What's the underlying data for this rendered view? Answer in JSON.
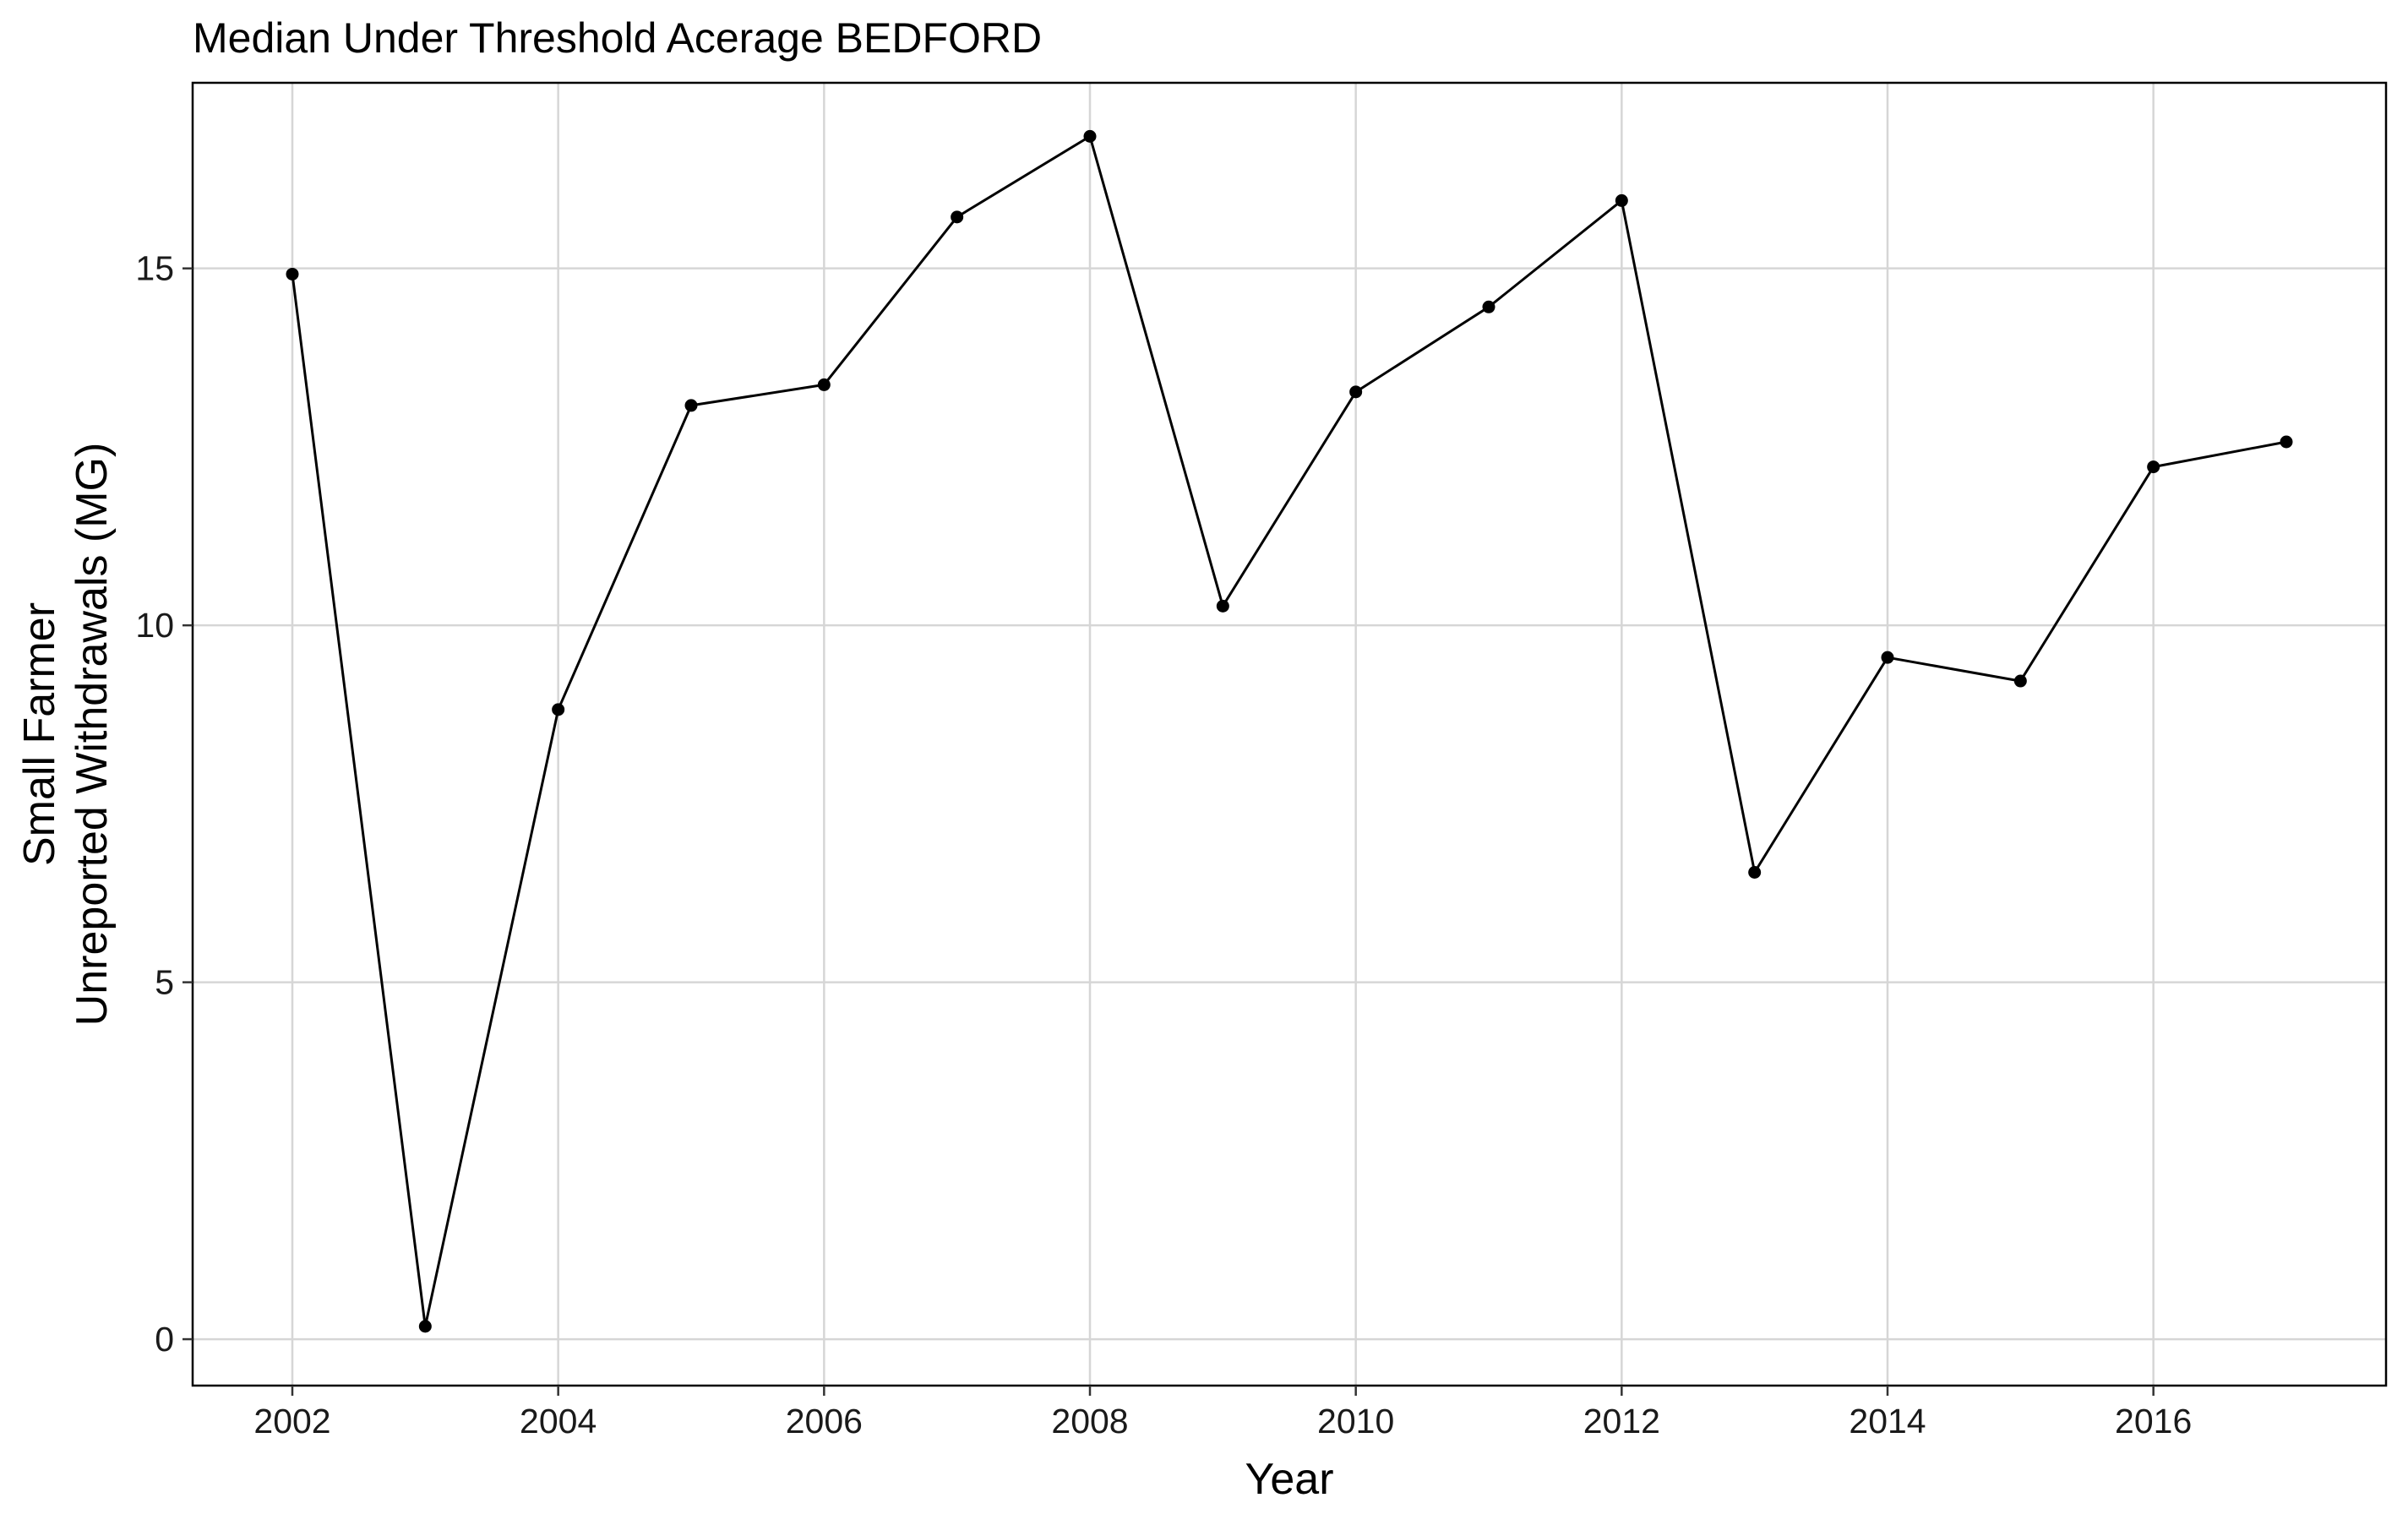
{
  "chart_data": {
    "type": "line",
    "title": "Median Under Threshold Acerage BEDFORD",
    "xlabel": "Year",
    "ylabel_lines": [
      "Small Farmer",
      "Unreported Withdrawals (MG)"
    ],
    "xlim": [
      2001.25,
      2017.75
    ],
    "ylim": [
      -0.65,
      17.6
    ],
    "x_ticks": [
      2002,
      2004,
      2006,
      2008,
      2010,
      2012,
      2014,
      2016
    ],
    "x_tick_labels": [
      "2002",
      "2004",
      "2006",
      "2008",
      "2010",
      "2012",
      "2014",
      "2016"
    ],
    "y_ticks": [
      0,
      5,
      10,
      15
    ],
    "y_tick_labels": [
      "0",
      "5",
      "10",
      "15"
    ],
    "grid": true,
    "legend": "none",
    "series": [
      {
        "x": [
          2002,
          2003,
          2004,
          2005,
          2006,
          2007,
          2008,
          2009,
          2010,
          2011,
          2012,
          2013,
          2014,
          2015,
          2016,
          2017
        ],
        "y": [
          14.92,
          0.18,
          8.82,
          13.08,
          13.37,
          15.72,
          16.85,
          10.27,
          13.27,
          14.46,
          15.95,
          6.54,
          9.55,
          9.22,
          12.22,
          12.57
        ],
        "color": "#000000"
      }
    ]
  }
}
